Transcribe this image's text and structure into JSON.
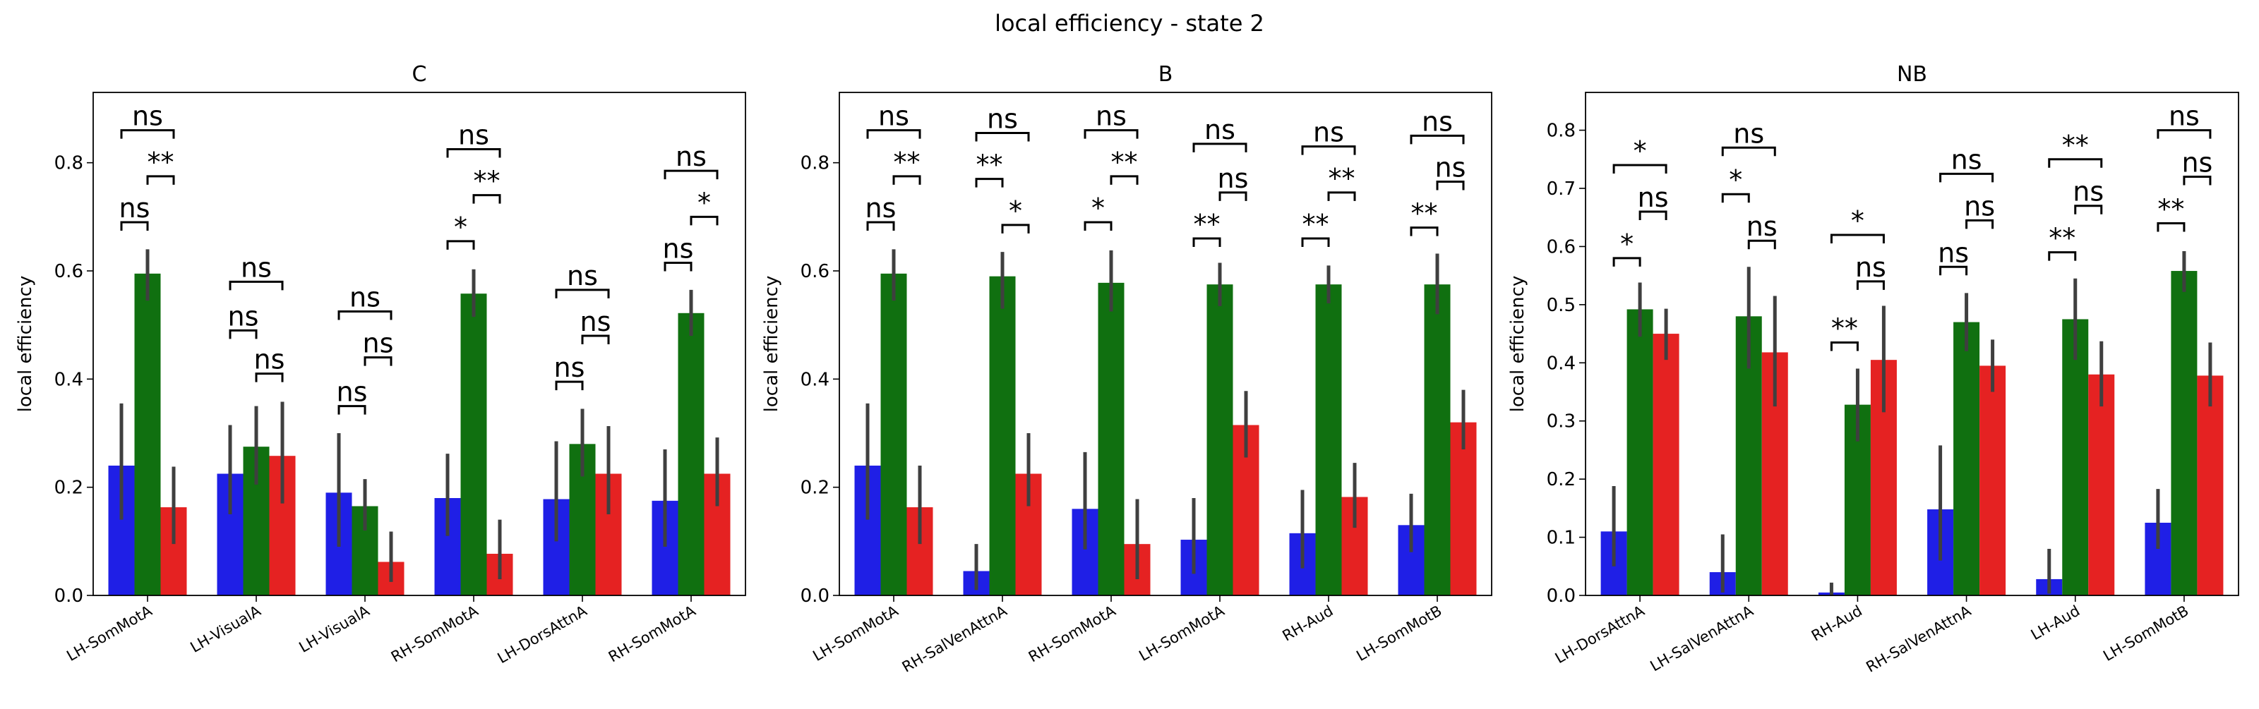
{
  "figure": {
    "suptitle": "local efficiency - state 2"
  },
  "colors": {
    "blue": "#1f1fe6",
    "green": "#107010",
    "red": "#e52222",
    "error": "#3f3f3f",
    "axis": "#000000"
  },
  "chart_data": [
    {
      "type": "bar",
      "title": "C",
      "ylabel": "local efficiency",
      "xlabel": "",
      "ylim": [
        0,
        0.93
      ],
      "yticks": [
        0.0,
        0.2,
        0.4,
        0.6,
        0.8
      ],
      "categories": [
        "LH-SomMotA",
        "LH-VisualA",
        "LH-VisualA",
        "RH-SomMotA",
        "LH-DorsAttnA",
        "RH-SomMotA"
      ],
      "series": [
        {
          "color": "blue",
          "values": [
            0.24,
            0.225,
            0.19,
            0.18,
            0.178,
            0.175
          ],
          "ci_low": [
            0.14,
            0.15,
            0.09,
            0.11,
            0.1,
            0.09
          ],
          "ci_high": [
            0.355,
            0.315,
            0.3,
            0.262,
            0.285,
            0.27
          ]
        },
        {
          "color": "green",
          "values": [
            0.595,
            0.275,
            0.165,
            0.558,
            0.28,
            0.522
          ],
          "ci_low": [
            0.545,
            0.205,
            0.12,
            0.515,
            0.22,
            0.48
          ],
          "ci_high": [
            0.64,
            0.35,
            0.215,
            0.603,
            0.345,
            0.565
          ]
        },
        {
          "color": "red",
          "values": [
            0.163,
            0.258,
            0.062,
            0.077,
            0.225,
            0.225
          ],
          "ci_low": [
            0.095,
            0.17,
            0.025,
            0.03,
            0.15,
            0.165
          ],
          "ci_high": [
            0.238,
            0.358,
            0.118,
            0.14,
            0.313,
            0.292
          ]
        }
      ],
      "annotations": [
        {
          "category": 0,
          "pairs": [
            {
              "pair": "blue-green",
              "label": "ns",
              "y": 0.69
            },
            {
              "pair": "green-red",
              "label": "**",
              "y": 0.775
            },
            {
              "pair": "blue-red",
              "label": "ns",
              "y": 0.86
            }
          ]
        },
        {
          "category": 1,
          "pairs": [
            {
              "pair": "blue-green",
              "label": "ns",
              "y": 0.49
            },
            {
              "pair": "green-red",
              "label": "ns",
              "y": 0.41
            },
            {
              "pair": "blue-red",
              "label": "ns",
              "y": 0.58
            }
          ]
        },
        {
          "category": 2,
          "pairs": [
            {
              "pair": "blue-green",
              "label": "ns",
              "y": 0.35
            },
            {
              "pair": "green-red",
              "label": "ns",
              "y": 0.44
            },
            {
              "pair": "blue-red",
              "label": "ns",
              "y": 0.525
            }
          ]
        },
        {
          "category": 3,
          "pairs": [
            {
              "pair": "blue-green",
              "label": "*",
              "y": 0.655
            },
            {
              "pair": "green-red",
              "label": "**",
              "y": 0.74
            },
            {
              "pair": "blue-red",
              "label": "ns",
              "y": 0.825
            }
          ]
        },
        {
          "category": 4,
          "pairs": [
            {
              "pair": "blue-green",
              "label": "ns",
              "y": 0.395
            },
            {
              "pair": "green-red",
              "label": "ns",
              "y": 0.48
            },
            {
              "pair": "blue-red",
              "label": "ns",
              "y": 0.565
            }
          ]
        },
        {
          "category": 5,
          "pairs": [
            {
              "pair": "blue-green",
              "label": "ns",
              "y": 0.615
            },
            {
              "pair": "green-red",
              "label": "*",
              "y": 0.7
            },
            {
              "pair": "blue-red",
              "label": "ns",
              "y": 0.785
            }
          ]
        }
      ]
    },
    {
      "type": "bar",
      "title": "B",
      "ylabel": "local efficiency",
      "xlabel": "",
      "ylim": [
        0,
        0.93
      ],
      "yticks": [
        0.0,
        0.2,
        0.4,
        0.6,
        0.8
      ],
      "categories": [
        "LH-SomMotA",
        "RH-SalVenAttnA",
        "RH-SomMotA",
        "LH-SomMotA",
        "RH-Aud",
        "LH-SomMotB"
      ],
      "series": [
        {
          "color": "blue",
          "values": [
            0.24,
            0.045,
            0.16,
            0.103,
            0.115,
            0.13
          ],
          "ci_low": [
            0.14,
            0.01,
            0.085,
            0.04,
            0.05,
            0.08
          ],
          "ci_high": [
            0.355,
            0.095,
            0.265,
            0.18,
            0.195,
            0.188
          ]
        },
        {
          "color": "green",
          "values": [
            0.595,
            0.59,
            0.578,
            0.575,
            0.575,
            0.575
          ],
          "ci_low": [
            0.545,
            0.53,
            0.525,
            0.535,
            0.54,
            0.52
          ],
          "ci_high": [
            0.64,
            0.635,
            0.638,
            0.615,
            0.61,
            0.632
          ]
        },
        {
          "color": "red",
          "values": [
            0.163,
            0.225,
            0.095,
            0.315,
            0.182,
            0.32
          ],
          "ci_low": [
            0.095,
            0.165,
            0.03,
            0.255,
            0.125,
            0.27
          ],
          "ci_high": [
            0.24,
            0.3,
            0.178,
            0.378,
            0.245,
            0.38
          ]
        }
      ],
      "annotations": [
        {
          "category": 0,
          "pairs": [
            {
              "pair": "blue-green",
              "label": "ns",
              "y": 0.69
            },
            {
              "pair": "green-red",
              "label": "**",
              "y": 0.775
            },
            {
              "pair": "blue-red",
              "label": "ns",
              "y": 0.86
            }
          ]
        },
        {
          "category": 1,
          "pairs": [
            {
              "pair": "blue-green",
              "label": "**",
              "y": 0.77
            },
            {
              "pair": "green-red",
              "label": "*",
              "y": 0.685
            },
            {
              "pair": "blue-red",
              "label": "ns",
              "y": 0.855
            }
          ]
        },
        {
          "category": 2,
          "pairs": [
            {
              "pair": "blue-green",
              "label": "*",
              "y": 0.69
            },
            {
              "pair": "green-red",
              "label": "**",
              "y": 0.775
            },
            {
              "pair": "blue-red",
              "label": "ns",
              "y": 0.86
            }
          ]
        },
        {
          "category": 3,
          "pairs": [
            {
              "pair": "blue-green",
              "label": "**",
              "y": 0.66
            },
            {
              "pair": "green-red",
              "label": "ns",
              "y": 0.745
            },
            {
              "pair": "blue-red",
              "label": "ns",
              "y": 0.835
            }
          ]
        },
        {
          "category": 4,
          "pairs": [
            {
              "pair": "blue-green",
              "label": "**",
              "y": 0.66
            },
            {
              "pair": "green-red",
              "label": "**",
              "y": 0.745
            },
            {
              "pair": "blue-red",
              "label": "ns",
              "y": 0.83
            }
          ]
        },
        {
          "category": 5,
          "pairs": [
            {
              "pair": "blue-green",
              "label": "**",
              "y": 0.68
            },
            {
              "pair": "green-red",
              "label": "ns",
              "y": 0.765
            },
            {
              "pair": "blue-red",
              "label": "ns",
              "y": 0.85
            }
          ]
        }
      ]
    },
    {
      "type": "bar",
      "title": "NB",
      "ylabel": "local efficiency",
      "xlabel": "",
      "ylim": [
        0,
        0.865
      ],
      "yticks": [
        0.0,
        0.1,
        0.2,
        0.3,
        0.4,
        0.5,
        0.6,
        0.7,
        0.8
      ],
      "categories": [
        "LH-DorsAttnA",
        "LH-SalVenAttnA",
        "RH-Aud",
        "RH-SalVenAttnA",
        "LH-Aud",
        "LH-SomMotB"
      ],
      "series": [
        {
          "color": "blue",
          "values": [
            0.11,
            0.04,
            0.005,
            0.148,
            0.028,
            0.125
          ],
          "ci_low": [
            0.05,
            0.005,
            0.0,
            0.06,
            0.003,
            0.08
          ],
          "ci_high": [
            0.188,
            0.105,
            0.022,
            0.258,
            0.08,
            0.183
          ]
        },
        {
          "color": "green",
          "values": [
            0.492,
            0.48,
            0.328,
            0.47,
            0.475,
            0.558
          ],
          "ci_low": [
            0.445,
            0.39,
            0.265,
            0.42,
            0.405,
            0.522
          ],
          "ci_high": [
            0.538,
            0.565,
            0.39,
            0.52,
            0.545,
            0.592
          ]
        },
        {
          "color": "red",
          "values": [
            0.45,
            0.418,
            0.405,
            0.395,
            0.38,
            0.378
          ],
          "ci_low": [
            0.405,
            0.325,
            0.315,
            0.35,
            0.325,
            0.325
          ],
          "ci_high": [
            0.493,
            0.515,
            0.498,
            0.44,
            0.437,
            0.435
          ]
        }
      ],
      "annotations": [
        {
          "category": 0,
          "pairs": [
            {
              "pair": "blue-green",
              "label": "*",
              "y": 0.58
            },
            {
              "pair": "green-red",
              "label": "ns",
              "y": 0.66
            },
            {
              "pair": "blue-red",
              "label": "*",
              "y": 0.74
            }
          ]
        },
        {
          "category": 1,
          "pairs": [
            {
              "pair": "blue-green",
              "label": "*",
              "y": 0.69
            },
            {
              "pair": "green-red",
              "label": "ns",
              "y": 0.61
            },
            {
              "pair": "blue-red",
              "label": "ns",
              "y": 0.77
            }
          ]
        },
        {
          "category": 2,
          "pairs": [
            {
              "pair": "blue-green",
              "label": "**",
              "y": 0.435
            },
            {
              "pair": "green-red",
              "label": "ns",
              "y": 0.54
            },
            {
              "pair": "blue-red",
              "label": "*",
              "y": 0.62
            }
          ]
        },
        {
          "category": 3,
          "pairs": [
            {
              "pair": "blue-green",
              "label": "ns",
              "y": 0.565
            },
            {
              "pair": "green-red",
              "label": "ns",
              "y": 0.645
            },
            {
              "pair": "blue-red",
              "label": "ns",
              "y": 0.725
            }
          ]
        },
        {
          "category": 4,
          "pairs": [
            {
              "pair": "blue-green",
              "label": "**",
              "y": 0.59
            },
            {
              "pair": "green-red",
              "label": "ns",
              "y": 0.67
            },
            {
              "pair": "blue-red",
              "label": "**",
              "y": 0.75
            }
          ]
        },
        {
          "category": 5,
          "pairs": [
            {
              "pair": "blue-green",
              "label": "**",
              "y": 0.64
            },
            {
              "pair": "green-red",
              "label": "ns",
              "y": 0.72
            },
            {
              "pair": "blue-red",
              "label": "ns",
              "y": 0.8
            }
          ]
        }
      ]
    }
  ]
}
